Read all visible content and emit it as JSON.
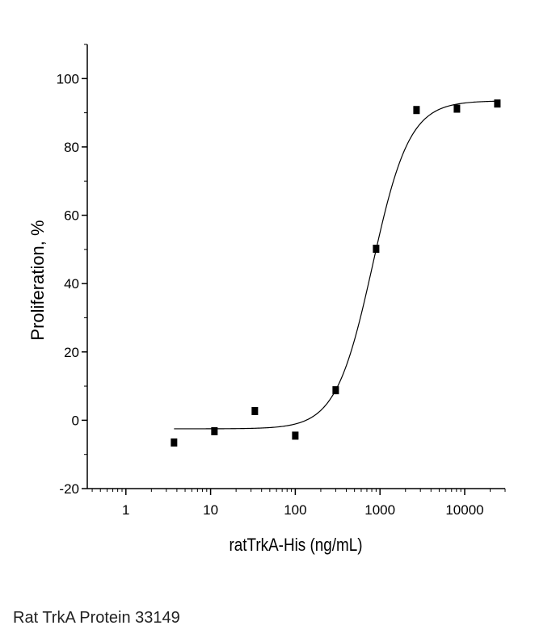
{
  "chart_data": {
    "type": "scatter",
    "xlabel": "ratTrkA-His (ng/mL)",
    "ylabel": "Proliferation, %",
    "xscale": "log",
    "xlim": [
      0.35,
      30000
    ],
    "ylim": [
      -20,
      110
    ],
    "xticks": [
      1,
      10,
      100,
      1000,
      10000
    ],
    "xtick_labels": [
      "1",
      "10",
      "100",
      "1000",
      "10000"
    ],
    "yticks": [
      -20,
      0,
      20,
      40,
      60,
      80,
      100
    ],
    "ytick_labels": [
      "-20",
      "0",
      "20",
      "40",
      "60",
      "80",
      "100"
    ],
    "grid": false,
    "legend": "none",
    "series": [
      {
        "x": [
          3.7,
          11.1,
          33.3,
          100,
          300,
          900,
          2700,
          8100,
          24300
        ],
        "y": [
          -6.5,
          -3.2,
          2.7,
          -4.5,
          8.8,
          50.2,
          90.8,
          91.2,
          92.7
        ]
      }
    ],
    "fit_curve": {
      "type": "four-parameter-logistic",
      "bottom": -2.5,
      "top": 93.5,
      "ec50": 820,
      "hill": 2.0,
      "x_range": [
        3.7,
        24300
      ]
    }
  },
  "caption": "Rat TrkA Protein 33149"
}
